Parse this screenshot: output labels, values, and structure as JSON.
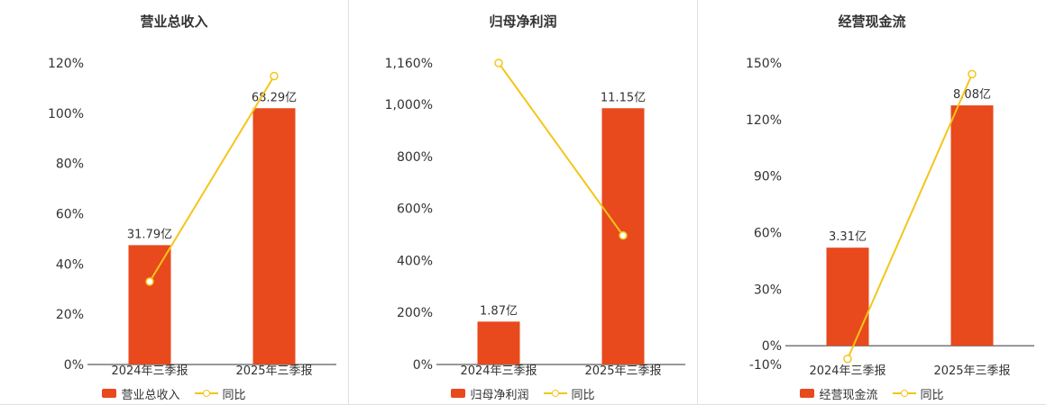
{
  "colors": {
    "bar": "#e8491d",
    "line": "#f5c51a",
    "axis": "#333333",
    "text": "#333333",
    "divider": "#e0e0e0",
    "background": "#ffffff",
    "marker_fill": "#ffffff"
  },
  "chart_data": [
    {
      "type": "bar+line",
      "title": "营业总收入",
      "categories": [
        "2024年三季报",
        "2025年三季报"
      ],
      "series": [
        {
          "name": "营业总收入",
          "type": "bar",
          "unit": "亿",
          "values": [
            31.79,
            68.29
          ],
          "labels": [
            "31.79亿",
            "68.29亿"
          ]
        },
        {
          "name": "同比",
          "type": "line",
          "unit": "%",
          "values": [
            33,
            114.8
          ]
        }
      ],
      "y_axis": {
        "min": 0,
        "max": 120,
        "tick_values": [
          0,
          20,
          40,
          60,
          80,
          100,
          120
        ],
        "tick_labels": [
          "0%",
          "20%",
          "40%",
          "60%",
          "80%",
          "100%",
          "120%"
        ]
      },
      "layout": {
        "bar_plot_values": [
          47.5,
          102
        ],
        "legend_position": "bottom",
        "grid": false
      }
    },
    {
      "type": "bar+line",
      "title": "归母净利润",
      "categories": [
        "2024年三季报",
        "2025年三季报"
      ],
      "series": [
        {
          "name": "归母净利润",
          "type": "bar",
          "unit": "亿",
          "values": [
            1.87,
            11.15
          ],
          "labels": [
            "1.87亿",
            "11.15亿"
          ]
        },
        {
          "name": "同比",
          "type": "line",
          "unit": "%",
          "values": [
            1160,
            496.3
          ]
        }
      ],
      "y_axis": {
        "min": 0,
        "max": 1160,
        "tick_values": [
          0,
          200,
          400,
          600,
          800,
          1000,
          1160
        ],
        "tick_labels": [
          "0%",
          "200%",
          "400%",
          "600%",
          "800%",
          "1,000%",
          "1,160%"
        ]
      },
      "layout": {
        "bar_plot_values": [
          165,
          986
        ],
        "legend_position": "bottom",
        "grid": false
      }
    },
    {
      "type": "bar+line",
      "title": "经营现金流",
      "categories": [
        "2024年三季报",
        "2025年三季报"
      ],
      "series": [
        {
          "name": "经营现金流",
          "type": "bar",
          "unit": "亿",
          "values": [
            3.31,
            8.08
          ],
          "labels": [
            "3.31亿",
            "8.08亿"
          ]
        },
        {
          "name": "同比",
          "type": "line",
          "unit": "%",
          "values": [
            -7,
            144.1
          ]
        }
      ],
      "y_axis": {
        "min": -10,
        "max": 150,
        "tick_values": [
          -10,
          0,
          30,
          60,
          90,
          120,
          150
        ],
        "tick_labels": [
          "-10%",
          "0%",
          "30%",
          "60%",
          "90%",
          "120%",
          "150%"
        ]
      },
      "layout": {
        "bar_plot_values": [
          52,
          127.5
        ],
        "legend_position": "bottom",
        "grid": false
      }
    }
  ]
}
